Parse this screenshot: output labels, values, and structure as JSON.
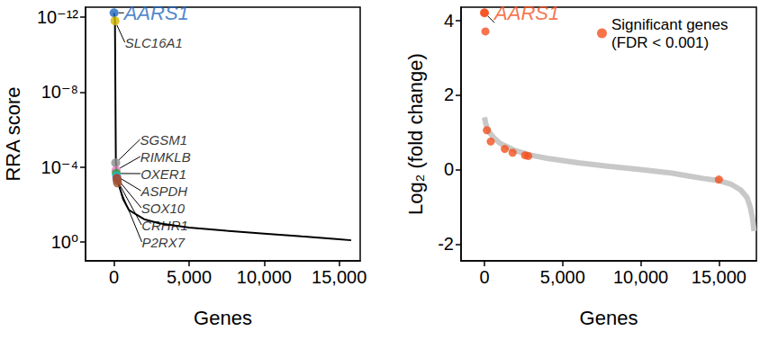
{
  "chart_data": [
    {
      "type": "line",
      "x_label": "Genes",
      "y_label": "RRA score",
      "log": "y",
      "grid": false,
      "color": "#000000",
      "xlim": [
        -1900,
        16400
      ],
      "xticks": [
        0,
        {
          "value": 5000,
          "label": "5,000"
        },
        {
          "value": 10000,
          "label": "10,000"
        },
        {
          "value": 15000,
          "label": "15,000"
        }
      ],
      "ylim": [
        10,
        3e-13
      ],
      "yticks": [
        {
          "value": 1e-12,
          "label": "10⁻¹²"
        },
        {
          "value": 1e-08,
          "label": "10⁻⁸"
        },
        {
          "value": 0.0001,
          "label": "10⁻⁴"
        },
        {
          "value": 1,
          "label": "10⁰"
        }
      ],
      "x": [
        0,
        60,
        120,
        200,
        300,
        600,
        1000,
        2000,
        3000,
        5000,
        7500,
        10000,
        12500,
        15000,
        15800
      ],
      "values": [
        6e-13,
        1.6e-12,
        6e-05,
        0.0003,
        0.0008,
        0.005,
        0.02,
        0.06,
        0.1,
        0.17,
        0.25,
        0.35,
        0.5,
        0.7,
        0.8
      ],
      "annotations": [
        {
          "text": "AARS1",
          "x": 0,
          "y": 6e-13,
          "color": "#2166c0"
        },
        {
          "text": "SLC16A1",
          "x": 60,
          "y": 1.6e-12,
          "color": "#d4b800"
        },
        {
          "text": "SGSM1",
          "x": 110,
          "y": 6e-05,
          "color": "#8c8c8c"
        },
        {
          "text": "RIMKLB",
          "x": 130,
          "y": 0.00015,
          "color": "#e377c2"
        },
        {
          "text": "OXER1",
          "x": 150,
          "y": 0.00022,
          "color": "#2ca02c"
        },
        {
          "text": "ASPDH",
          "x": 170,
          "y": 0.0003,
          "color": "#17becf"
        },
        {
          "text": "SOX10",
          "x": 190,
          "y": 0.0004,
          "color": "#d62728"
        },
        {
          "text": "CRHR1",
          "x": 210,
          "y": 0.0005,
          "color": "#8c564b"
        },
        {
          "text": "P2RX7",
          "x": 230,
          "y": 0.0007,
          "color": "#a0522d"
        }
      ]
    },
    {
      "type": "scatter",
      "x_label": "Genes",
      "y_label": "Log₂ (fold change)",
      "grid": false,
      "legend": "top-right",
      "xlim": [
        -1500,
        17400
      ],
      "xticks": [
        0,
        {
          "value": 5000,
          "label": "5,000"
        },
        {
          "value": 10000,
          "label": "10,000"
        },
        {
          "value": 15000,
          "label": "15,000"
        }
      ],
      "ylim": [
        -2.45,
        4.35
      ],
      "yticks": [
        -2,
        0,
        2,
        4
      ],
      "series": [
        {
          "type": "line",
          "color": "#c8c8c8",
          "line_style": "solid",
          "x": [
            0,
            100,
            300,
            600,
            1000,
            2000,
            3000,
            4000,
            5000,
            6000,
            7000,
            8000,
            9000,
            10000,
            11000,
            12000,
            13000,
            14000,
            15000,
            15800,
            16400,
            16800,
            17000,
            17150,
            17250
          ],
          "values": [
            1.4,
            1.2,
            1.0,
            0.85,
            0.7,
            0.5,
            0.38,
            0.3,
            0.24,
            0.18,
            0.13,
            0.08,
            0.04,
            0,
            -0.05,
            -0.1,
            -0.17,
            -0.24,
            -0.3,
            -0.4,
            -0.55,
            -0.75,
            -1.0,
            -1.3,
            -1.65
          ]
        },
        {
          "name": "Significant genes (FDR < 0.001)",
          "type": "scatter",
          "color": "#f4511e",
          "marker": "circle",
          "x": [
            0,
            60,
            150,
            400,
            1300,
            1800,
            2600,
            2800,
            15000
          ],
          "values": [
            4.2,
            3.7,
            1.05,
            0.75,
            0.55,
            0.45,
            0.38,
            0.36,
            -0.27
          ]
        }
      ],
      "annotations": [
        {
          "text": "AARS1",
          "x": 0,
          "y": 4.2,
          "color": "#f4511e"
        }
      ]
    }
  ]
}
